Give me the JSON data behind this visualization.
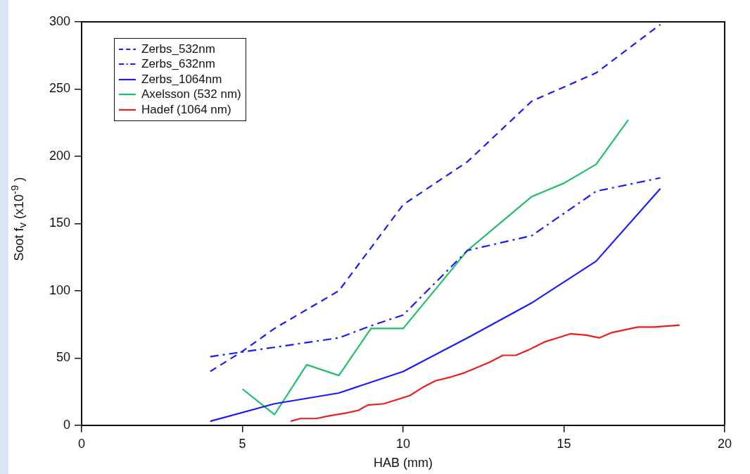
{
  "chart_data": {
    "type": "line",
    "xlabel": "HAB (mm)",
    "ylabel": "Soot f$_{v}$ (x10$^{-9}$ )",
    "xlim": [
      0,
      20
    ],
    "xticks": [
      0,
      5,
      10,
      15,
      20
    ],
    "ylim": [
      0,
      300
    ],
    "yticks": [
      0,
      50,
      100,
      150,
      200,
      250,
      300
    ],
    "grid": false,
    "legend": "top left",
    "marker": "none",
    "series": [
      {
        "name": "Zerbs_532nm",
        "color": "#1a1aff",
        "line_style": "dashed",
        "x": [
          4,
          5,
          6,
          8,
          10,
          12,
          14,
          16,
          18
        ],
        "values": [
          40,
          55,
          72,
          100,
          164,
          196,
          241,
          262,
          298
        ]
      },
      {
        "name": "Zerbs_632nm",
        "color": "#1a1aff",
        "line_style": "dashdot",
        "x": [
          4,
          8,
          9,
          10,
          12,
          14,
          16,
          18
        ],
        "values": [
          51,
          65,
          74,
          82,
          130,
          141,
          174,
          184
        ]
      },
      {
        "name": "Zerbs_1064nm",
        "color": "#1a1aff",
        "line_style": "solid",
        "x": [
          4,
          6,
          8,
          10,
          12,
          14,
          16,
          18
        ],
        "values": [
          3,
          16,
          24,
          40,
          65,
          91,
          122,
          176
        ]
      },
      {
        "name": "Axelsson (532 nm)",
        "color": "#1fbf6a",
        "line_style": "solid",
        "x": [
          5,
          6,
          7,
          8,
          9,
          10,
          12,
          13,
          14,
          15,
          16,
          17
        ],
        "values": [
          27,
          8,
          45,
          37,
          72,
          72,
          130,
          150,
          170,
          180,
          194,
          227
        ]
      },
      {
        "name": "Hadef (1064 nm)",
        "color": "#ee1c1c",
        "line_style": "solid",
        "x": [
          6.5,
          6.8,
          7.3,
          7.7,
          8.2,
          8.6,
          8.9,
          9.4,
          9.8,
          10.2,
          10.6,
          11,
          11.5,
          11.9,
          12.3,
          12.7,
          13.1,
          13.5,
          13.9,
          14.4,
          14.8,
          15.2,
          15.7,
          16.1,
          16.5,
          17.3,
          17.8,
          18.6
        ],
        "values": [
          3,
          5,
          5,
          7,
          9,
          11,
          15,
          16,
          19,
          22,
          28,
          33,
          36,
          39,
          43,
          47,
          52,
          52,
          56,
          62,
          65,
          68,
          67,
          65,
          69,
          73,
          73,
          74.5
        ]
      }
    ]
  }
}
